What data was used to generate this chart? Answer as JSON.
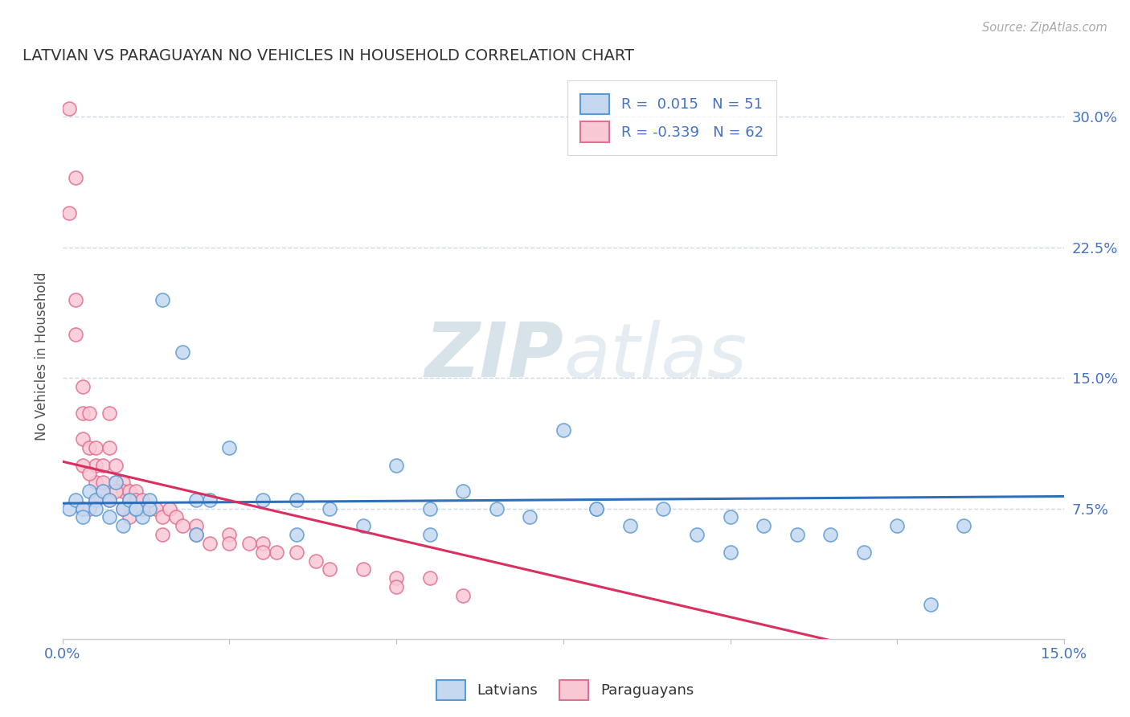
{
  "title": "LATVIAN VS PARAGUAYAN NO VEHICLES IN HOUSEHOLD CORRELATION CHART",
  "source": "Source: ZipAtlas.com",
  "ylabel": "No Vehicles in Household",
  "xlim": [
    0.0,
    0.15
  ],
  "ylim": [
    0.0,
    0.325
  ],
  "ytick_vals": [
    0.075,
    0.15,
    0.225,
    0.3
  ],
  "ytick_labels": [
    "7.5%",
    "15.0%",
    "22.5%",
    "30.0%"
  ],
  "xtick_vals": [
    0.0,
    0.025,
    0.05,
    0.075,
    0.1,
    0.125,
    0.15
  ],
  "xtick_labels": [
    "0.0%",
    "",
    "",
    "",
    "",
    "",
    "15.0%"
  ],
  "latvian_face_color": "#c5d8f0",
  "latvian_edge_color": "#5b9bd5",
  "paraguayan_face_color": "#f9c8d5",
  "paraguayan_edge_color": "#e07090",
  "latvian_line_color": "#2e6fba",
  "paraguayan_line_color": "#d93060",
  "watermark_color": "#d4e0ed",
  "title_color": "#333333",
  "source_color": "#aaaaaa",
  "axis_tick_color": "#4472c4",
  "grid_color": "#c8d8e8",
  "legend_text_color": "#4472c4",
  "legend_label_color": "#333333",
  "latvian_R": 0.015,
  "latvian_N": 51,
  "paraguayan_R": -0.339,
  "paraguayan_N": 62,
  "latvian_x": [
    0.001,
    0.002,
    0.003,
    0.004,
    0.005,
    0.006,
    0.007,
    0.008,
    0.009,
    0.01,
    0.011,
    0.012,
    0.013,
    0.015,
    0.018,
    0.02,
    0.022,
    0.025,
    0.03,
    0.035,
    0.04,
    0.045,
    0.05,
    0.055,
    0.06,
    0.065,
    0.07,
    0.075,
    0.08,
    0.085,
    0.09,
    0.095,
    0.1,
    0.105,
    0.11,
    0.115,
    0.12,
    0.125,
    0.13,
    0.135,
    0.003,
    0.005,
    0.007,
    0.009,
    0.011,
    0.013,
    0.02,
    0.035,
    0.055,
    0.08,
    0.1
  ],
  "latvian_y": [
    0.075,
    0.08,
    0.075,
    0.085,
    0.08,
    0.085,
    0.08,
    0.09,
    0.075,
    0.08,
    0.075,
    0.07,
    0.08,
    0.195,
    0.165,
    0.08,
    0.08,
    0.11,
    0.08,
    0.08,
    0.075,
    0.065,
    0.1,
    0.075,
    0.085,
    0.075,
    0.07,
    0.12,
    0.075,
    0.065,
    0.075,
    0.06,
    0.07,
    0.065,
    0.06,
    0.06,
    0.05,
    0.065,
    0.02,
    0.065,
    0.07,
    0.075,
    0.07,
    0.065,
    0.075,
    0.075,
    0.06,
    0.06,
    0.06,
    0.075,
    0.05
  ],
  "paraguayan_x": [
    0.001,
    0.001,
    0.002,
    0.002,
    0.002,
    0.003,
    0.003,
    0.003,
    0.004,
    0.004,
    0.005,
    0.005,
    0.005,
    0.006,
    0.006,
    0.007,
    0.007,
    0.008,
    0.008,
    0.009,
    0.009,
    0.01,
    0.01,
    0.011,
    0.011,
    0.012,
    0.012,
    0.013,
    0.014,
    0.015,
    0.016,
    0.017,
    0.018,
    0.02,
    0.022,
    0.025,
    0.028,
    0.03,
    0.032,
    0.035,
    0.038,
    0.04,
    0.045,
    0.05,
    0.055,
    0.06,
    0.003,
    0.004,
    0.005,
    0.006,
    0.007,
    0.008,
    0.009,
    0.01,
    0.012,
    0.015,
    0.02,
    0.025,
    0.03,
    0.05,
    0.003,
    0.004
  ],
  "paraguayan_y": [
    0.305,
    0.245,
    0.265,
    0.195,
    0.175,
    0.145,
    0.13,
    0.115,
    0.13,
    0.11,
    0.11,
    0.1,
    0.09,
    0.1,
    0.085,
    0.13,
    0.11,
    0.1,
    0.09,
    0.09,
    0.085,
    0.085,
    0.08,
    0.085,
    0.08,
    0.08,
    0.075,
    0.075,
    0.075,
    0.07,
    0.075,
    0.07,
    0.065,
    0.065,
    0.055,
    0.06,
    0.055,
    0.055,
    0.05,
    0.05,
    0.045,
    0.04,
    0.04,
    0.035,
    0.035,
    0.025,
    0.1,
    0.095,
    0.08,
    0.09,
    0.08,
    0.085,
    0.075,
    0.07,
    0.075,
    0.06,
    0.06,
    0.055,
    0.05,
    0.03,
    0.075,
    0.075
  ]
}
